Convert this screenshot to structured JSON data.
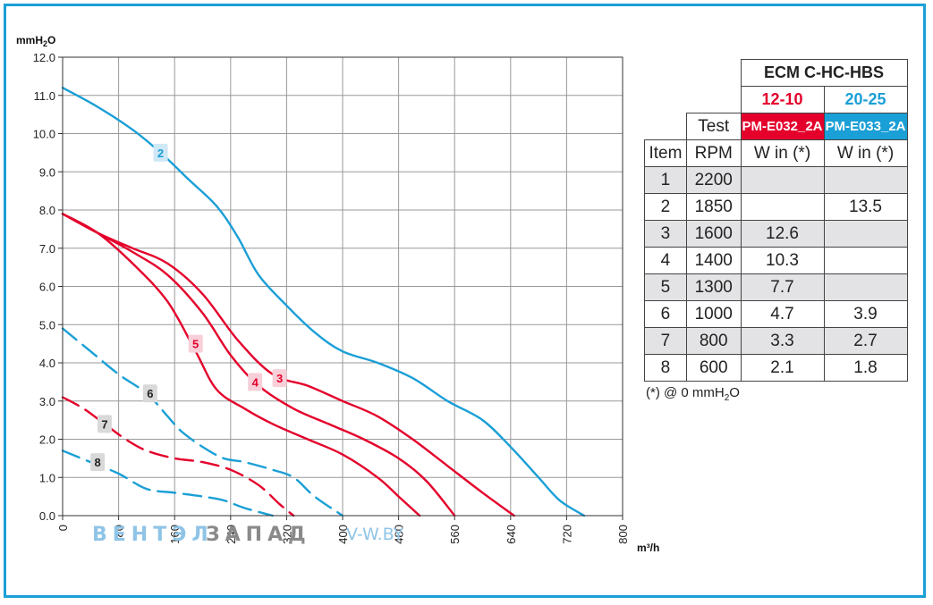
{
  "chart_data": {
    "type": "line",
    "y_unit": "mmH2O",
    "x_unit": "m³/h",
    "xlim": [
      0,
      800
    ],
    "ylim": [
      0,
      12
    ],
    "x_ticks": [
      "0",
      "80",
      "160",
      "240",
      "320",
      "400",
      "480",
      "560",
      "640",
      "720",
      "800"
    ],
    "y_ticks": [
      "0.0",
      "1.0",
      "2.0",
      "3.0",
      "4.0",
      "5.0",
      "6.0",
      "7.0",
      "8.0",
      "9.0",
      "10.0",
      "11.0",
      "12.0"
    ],
    "grid": true,
    "series": [
      {
        "name": "2",
        "color": "#1a9fd6",
        "dashed": false,
        "label_at": [
          140,
          9.5
        ],
        "points": [
          [
            0,
            11.2
          ],
          [
            50,
            10.7
          ],
          [
            100,
            10.1
          ],
          [
            140,
            9.5
          ],
          [
            180,
            8.8
          ],
          [
            220,
            8.1
          ],
          [
            250,
            7.3
          ],
          [
            280,
            6.3
          ],
          [
            320,
            5.5
          ],
          [
            360,
            4.8
          ],
          [
            400,
            4.3
          ],
          [
            450,
            4.0
          ],
          [
            500,
            3.6
          ],
          [
            550,
            3.0
          ],
          [
            600,
            2.5
          ],
          [
            640,
            1.8
          ],
          [
            680,
            1.0
          ],
          [
            710,
            0.4
          ],
          [
            745,
            0.0
          ]
        ]
      },
      {
        "name": "3",
        "color": "#e4002b",
        "dashed": false,
        "label_at": [
          310,
          3.6
        ],
        "points": [
          [
            0,
            7.9
          ],
          [
            50,
            7.4
          ],
          [
            100,
            7.0
          ],
          [
            150,
            6.6
          ],
          [
            200,
            5.8
          ],
          [
            250,
            4.6
          ],
          [
            300,
            3.7
          ],
          [
            350,
            3.4
          ],
          [
            400,
            3.0
          ],
          [
            450,
            2.6
          ],
          [
            500,
            2.0
          ],
          [
            550,
            1.3
          ],
          [
            600,
            0.6
          ],
          [
            645,
            0.0
          ]
        ]
      },
      {
        "name": "4",
        "color": "#e4002b",
        "dashed": false,
        "label_at": [
          275,
          3.5
        ],
        "points": [
          [
            0,
            7.9
          ],
          [
            50,
            7.4
          ],
          [
            100,
            6.9
          ],
          [
            150,
            6.3
          ],
          [
            200,
            5.3
          ],
          [
            240,
            4.2
          ],
          [
            280,
            3.4
          ],
          [
            330,
            2.8
          ],
          [
            380,
            2.4
          ],
          [
            430,
            2.0
          ],
          [
            480,
            1.5
          ],
          [
            520,
            0.9
          ],
          [
            560,
            0.0
          ]
        ]
      },
      {
        "name": "5",
        "color": "#e4002b",
        "dashed": false,
        "label_at": [
          190,
          4.5
        ],
        "points": [
          [
            0,
            7.9
          ],
          [
            50,
            7.4
          ],
          [
            100,
            6.6
          ],
          [
            150,
            5.6
          ],
          [
            190,
            4.3
          ],
          [
            220,
            3.3
          ],
          [
            260,
            2.8
          ],
          [
            300,
            2.4
          ],
          [
            350,
            2.0
          ],
          [
            400,
            1.6
          ],
          [
            450,
            1.0
          ],
          [
            480,
            0.5
          ],
          [
            510,
            0.0
          ]
        ]
      },
      {
        "name": "6",
        "color": "#1a9fd6",
        "dashed": true,
        "label_at": [
          125,
          3.2
        ],
        "points": [
          [
            0,
            4.9
          ],
          [
            40,
            4.3
          ],
          [
            80,
            3.7
          ],
          [
            120,
            3.2
          ],
          [
            150,
            2.6
          ],
          [
            170,
            2.2
          ],
          [
            200,
            1.8
          ],
          [
            230,
            1.5
          ],
          [
            260,
            1.4
          ],
          [
            300,
            1.2
          ],
          [
            330,
            1.0
          ],
          [
            360,
            0.5
          ],
          [
            400,
            0.0
          ]
        ]
      },
      {
        "name": "7",
        "color": "#e4002b",
        "dashed": true,
        "label_at": [
          60,
          2.4
        ],
        "points": [
          [
            0,
            3.1
          ],
          [
            30,
            2.8
          ],
          [
            60,
            2.4
          ],
          [
            90,
            2.0
          ],
          [
            120,
            1.7
          ],
          [
            160,
            1.5
          ],
          [
            200,
            1.4
          ],
          [
            240,
            1.2
          ],
          [
            280,
            0.8
          ],
          [
            310,
            0.3
          ],
          [
            330,
            0.0
          ]
        ]
      },
      {
        "name": "8",
        "color": "#1a9fd6",
        "dashed": true,
        "label_at": [
          50,
          1.4
        ],
        "points": [
          [
            0,
            1.7
          ],
          [
            40,
            1.4
          ],
          [
            80,
            1.1
          ],
          [
            120,
            0.7
          ],
          [
            160,
            0.6
          ],
          [
            200,
            0.5
          ],
          [
            230,
            0.4
          ],
          [
            260,
            0.2
          ],
          [
            300,
            0.0
          ]
        ]
      }
    ]
  },
  "labels": {
    "y_unit_prefix": "mmH",
    "y_unit_sub": "2",
    "y_unit_suffix": "O",
    "x_unit": "m³/h"
  },
  "watermark": {
    "text1": "ВЕНТЭЛ",
    "text2": "ЗАПАД",
    "text3": "V-W.BY"
  },
  "table": {
    "title": "ECM C-HC-HBS",
    "sizes": [
      "12-10",
      "20-25"
    ],
    "test_label": "Test",
    "codes": [
      "PM-E032_2A",
      "PM-E033_2A"
    ],
    "headers": [
      "Item",
      "RPM",
      "W in (*)",
      "W in (*)"
    ],
    "rows": [
      [
        "1",
        "2200",
        "",
        ""
      ],
      [
        "2",
        "1850",
        "",
        "13.5"
      ],
      [
        "3",
        "1600",
        "12.6",
        ""
      ],
      [
        "4",
        "1400",
        "10.3",
        ""
      ],
      [
        "5",
        "1300",
        "7.7",
        ""
      ],
      [
        "6",
        "1000",
        "4.7",
        "3.9"
      ],
      [
        "7",
        "800",
        "3.3",
        "2.7"
      ],
      [
        "8",
        "600",
        "2.1",
        "1.8"
      ]
    ],
    "note_prefix": "(*) @ 0 mmH",
    "note_sub": "2",
    "note_suffix": "O"
  },
  "colors": {
    "accent_blue": "#1a9fd6",
    "accent_red": "#e4002b",
    "shade": "#e3e3e5"
  }
}
